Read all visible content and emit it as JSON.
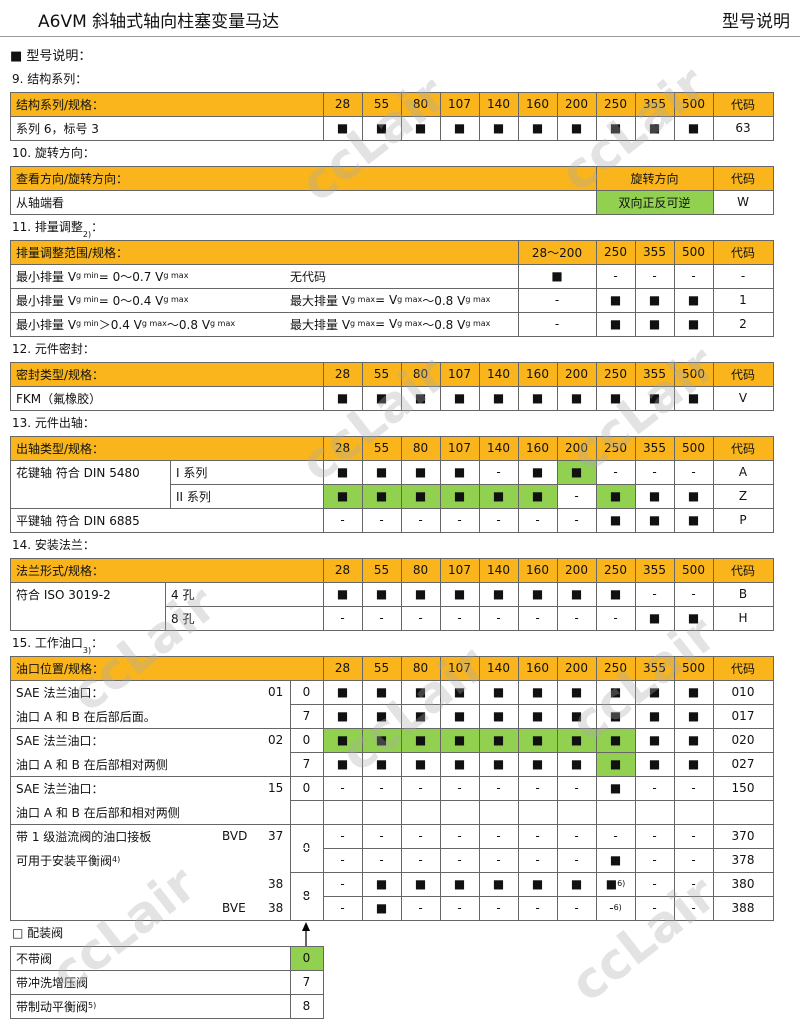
{
  "header": {
    "title": "A6VM 斜轴式轴向柱塞变量马达",
    "right": "型号说明"
  },
  "heading": "■  型号说明：",
  "watermark": "ccLair",
  "header_color": "#f9b51b",
  "highlight_color": "#92d050",
  "sections": [
    {
      "title": [
        "9.  结构系列："
      ],
      "header": {
        "label": "结构系列/规格：",
        "cols": [
          "28",
          "55",
          "80",
          "107",
          "140",
          "160",
          "200",
          "250",
          "355",
          "500",
          "代码"
        ]
      },
      "rows": [
        {
          "labels": [
            "系列 6，标号 3"
          ],
          "cells": [
            "■",
            "■",
            "■",
            "■",
            "■",
            "■",
            "■",
            "■",
            "■",
            "■",
            "63"
          ],
          "highlight": []
        }
      ]
    },
    {
      "title": [
        "10. 旋转方向："
      ],
      "header": {
        "label": "查看方向/旋转方向：",
        "cols": [
          "旋转方向",
          "代码"
        ]
      },
      "rows": [
        {
          "labels": [
            "从轴端看"
          ],
          "cells": [
            "双向正反可逆",
            "W"
          ],
          "highlight": [
            0
          ]
        }
      ]
    },
    {
      "title": [
        "11. 排量调整 ",
        {
          "sup": "2)"
        },
        "："
      ],
      "header": {
        "label": "排量调整范围/规格：",
        "cols": [
          "28～200",
          "250",
          "355",
          "500",
          "代码"
        ]
      },
      "rows": [
        {
          "labels": [
            [
              "最小排量 V",
              {
                "sub": "g min"
              },
              " = 0～0.7 V",
              {
                "sub": "g max"
              }
            ],
            "无代码"
          ],
          "cells": [
            "■",
            "-",
            "-",
            "-",
            "-"
          ],
          "highlight": []
        },
        {
          "labels": [
            [
              "最小排量 V",
              {
                "sub": "g min"
              },
              " = 0～0.4 V",
              {
                "sub": "g max"
              }
            ],
            [
              "最大排量 V",
              {
                "sub": "g max"
              },
              " = V",
              {
                "sub": "g max"
              },
              "～0.8 V",
              {
                "sub": "g max"
              }
            ]
          ],
          "cells": [
            "-",
            "■",
            "■",
            "■",
            "1"
          ],
          "highlight": []
        },
        {
          "labels": [
            [
              "最小排量 V",
              {
                "sub": "g min"
              },
              " ＞0.4 V",
              {
                "sub": "g max"
              },
              "～0.8 V",
              {
                "sub": "g max"
              }
            ],
            [
              "最大排量 V",
              {
                "sub": "g max"
              },
              " = V",
              {
                "sub": "g max"
              },
              "～0.8 V",
              {
                "sub": "g max"
              }
            ]
          ],
          "cells": [
            "-",
            "■",
            "■",
            "■",
            "2"
          ],
          "highlight": []
        }
      ]
    },
    {
      "title": [
        "12. 元件密封："
      ],
      "header": {
        "label": "密封类型/规格：",
        "cols": [
          "28",
          "55",
          "80",
          "107",
          "140",
          "160",
          "200",
          "250",
          "355",
          "500",
          "代码"
        ]
      },
      "rows": [
        {
          "labels": [
            "FKM（氟橡胶）"
          ],
          "cells": [
            "■",
            "■",
            "■",
            "■",
            "■",
            "■",
            "■",
            "■",
            "■",
            "■",
            "V"
          ],
          "highlight": []
        }
      ]
    },
    {
      "title": [
        "13. 元件出轴："
      ],
      "header": {
        "label": "出轴类型/规格：",
        "cols": [
          "28",
          "55",
          "80",
          "107",
          "140",
          "160",
          "200",
          "250",
          "355",
          "500",
          "代码"
        ]
      },
      "rows": [
        {
          "labels": [
            "花键轴    符合  DIN 5480",
            "I 系列"
          ],
          "cells": [
            "■",
            "■",
            "■",
            "■",
            "-",
            "■",
            "■",
            "-",
            "-",
            "-",
            "A"
          ],
          "highlight": [
            6
          ]
        },
        {
          "labels": [
            null,
            "II 系列"
          ],
          "cells": [
            "■",
            "■",
            "■",
            "■",
            "■",
            "■",
            "-",
            "■",
            "■",
            "■",
            "Z"
          ],
          "highlight": [
            0,
            1,
            2,
            3,
            4,
            5,
            7
          ]
        },
        {
          "labels": [
            "平键轴    符合  DIN 6885"
          ],
          "cells": [
            "-",
            "-",
            "-",
            "-",
            "-",
            "-",
            "-",
            "■",
            "■",
            "■",
            "P"
          ],
          "highlight": []
        }
      ]
    },
    {
      "title": [
        "14. 安装法兰："
      ],
      "header": {
        "label": "法兰形式/规格：",
        "cols": [
          "28",
          "55",
          "80",
          "107",
          "140",
          "160",
          "200",
          "250",
          "355",
          "500",
          "代码"
        ]
      },
      "rows": [
        {
          "labels": [
            "符合 ISO 3019-2",
            "4 孔"
          ],
          "cells": [
            "■",
            "■",
            "■",
            "■",
            "■",
            "■",
            "■",
            "■",
            "-",
            "-",
            "B"
          ],
          "highlight": []
        },
        {
          "labels": [
            null,
            "8 孔"
          ],
          "cells": [
            "-",
            "-",
            "-",
            "-",
            "-",
            "-",
            "-",
            "-",
            "■",
            "■",
            "H"
          ],
          "highlight": []
        }
      ]
    },
    {
      "title": [
        "15. 工作油口 ",
        {
          "sup": "3)"
        },
        "："
      ],
      "header": {
        "label": "油口位置/规格：",
        "cols": [
          "28",
          "55",
          "80",
          "107",
          "140",
          "160",
          "200",
          "250",
          "355",
          "500",
          "代码"
        ]
      },
      "rows": [
        {
          "labels": [
            "SAE 法兰油口：",
            null,
            "01"
          ],
          "option": "0",
          "cells": [
            "■",
            "■",
            "■",
            "■",
            "■",
            "■",
            "■",
            "■",
            "■",
            "■",
            "010"
          ],
          "highlight": []
        },
        {
          "labels": [
            "油口 A 和 B 在后部后面。"
          ],
          "option": "7",
          "cells": [
            "■",
            "■",
            "■",
            "■",
            "■",
            "■",
            "■",
            "■",
            "■",
            "■",
            "017"
          ],
          "highlight": []
        },
        {
          "labels": [
            "SAE 法兰油口：",
            null,
            "02"
          ],
          "option": "0",
          "cells": [
            "■",
            "■",
            "■",
            "■",
            "■",
            "■",
            "■",
            "■",
            "■",
            "■",
            "020"
          ],
          "highlight": [
            0,
            1,
            2,
            3,
            4,
            5,
            6,
            7
          ]
        },
        {
          "labels": [
            "油口 A 和 B 在后部相对两侧"
          ],
          "option": "7",
          "cells": [
            "■",
            "■",
            "■",
            "■",
            "■",
            "■",
            "■",
            "■",
            "■",
            "■",
            "027"
          ],
          "highlight": [
            7
          ]
        },
        {
          "labels": [
            "SAE 法兰油口：",
            null,
            "15"
          ],
          "option": "0",
          "cells": [
            "-",
            "-",
            "-",
            "-",
            "-",
            "-",
            "-",
            "■",
            "-",
            "-",
            "150"
          ],
          "highlight": []
        },
        {
          "labels": [
            "油口 A 和 B 在后部和相对两侧"
          ]
        },
        {
          "labels": [
            "带 1 级溢流阀的油口接板",
            "BVD",
            "37"
          ],
          "option": "0",
          "cells": [
            "-",
            "-",
            "-",
            "-",
            "-",
            "-",
            "-",
            "-",
            "-",
            "-",
            "370"
          ],
          "highlight": []
        },
        {
          "labels": [
            [
              "可用于安装平衡阀 ",
              {
                "sup": "4)"
              }
            ]
          ],
          "cells": [
            "-",
            "-",
            "-",
            "-",
            "-",
            "-",
            "-",
            "■",
            "-",
            "-",
            "378"
          ],
          "highlight": []
        },
        {
          "labels": [
            null,
            null,
            "38"
          ],
          "option": "8",
          "cells": [
            "-",
            "■",
            "■",
            "■",
            "■",
            "■",
            "■",
            [
              "■",
              {
                "sup": "6)"
              }
            ],
            "-",
            "-",
            "380"
          ],
          "highlight": []
        },
        {
          "labels": [
            null,
            "BVE",
            "38"
          ],
          "cells": [
            "-",
            "■",
            "-",
            "-",
            "-",
            "-",
            "-",
            [
              "-",
              {
                "sup": "6)"
              }
            ],
            "-",
            "-",
            "388"
          ],
          "highlight": []
        }
      ]
    },
    {
      "title": [
        "□  配装阀"
      ],
      "rows": [
        {
          "labels": [
            "不带阀"
          ],
          "cells": [
            "0"
          ],
          "highlight": [
            0
          ]
        },
        {
          "labels": [
            "带冲洗增压阀"
          ],
          "cells": [
            "7"
          ],
          "highlight": []
        },
        {
          "labels": [
            [
              "带制动平衡阀 ",
              {
                "sup": "5)"
              }
            ]
          ],
          "cells": [
            "8"
          ],
          "highlight": []
        }
      ]
    }
  ]
}
